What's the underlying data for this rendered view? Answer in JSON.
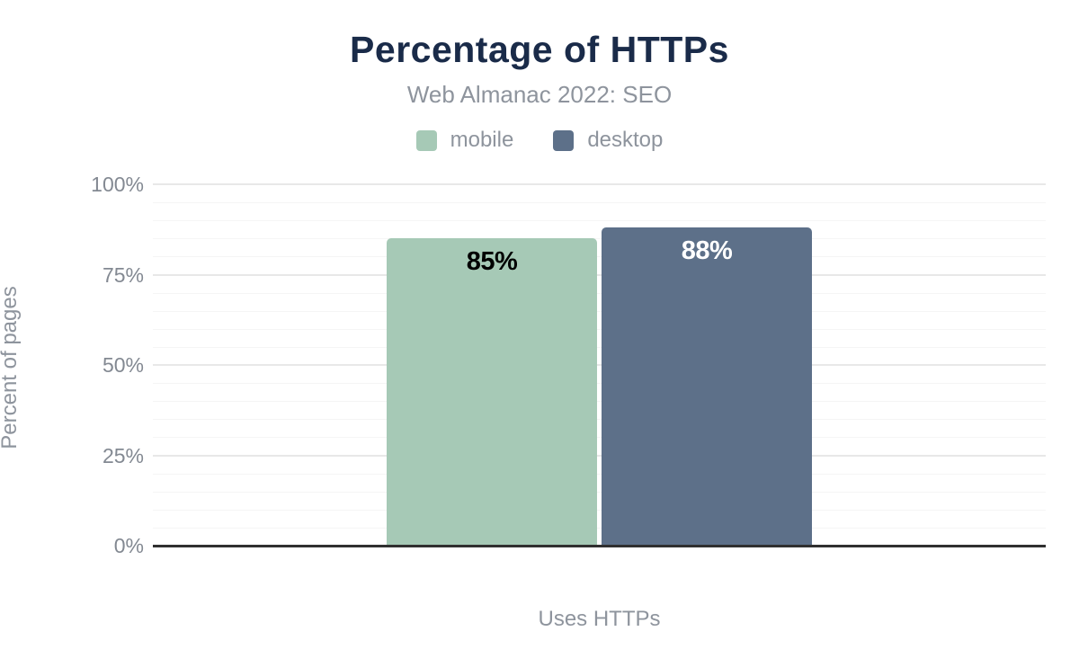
{
  "header": {
    "title": "Percentage of HTTPs",
    "subtitle": "Web Almanac 2022: SEO"
  },
  "legend": [
    {
      "label": "mobile",
      "color": "#a6c9b6"
    },
    {
      "label": "desktop",
      "color": "#5d7089"
    }
  ],
  "colors": {
    "title": "#1a2b49",
    "axis_text": "#8e949d",
    "tick_text": "#838992",
    "baseline": "#303030",
    "major_grid": "#e8e8e8",
    "minor_grid": "#f5f5f5"
  },
  "chart_data": {
    "type": "bar",
    "title": "Percentage of HTTPs",
    "subtitle": "Web Almanac 2022: SEO",
    "categories": [
      "Uses HTTPs"
    ],
    "series": [
      {
        "name": "mobile",
        "values": [
          85
        ],
        "color": "#a6c9b6",
        "label_color": "#000000"
      },
      {
        "name": "desktop",
        "values": [
          88
        ],
        "color": "#5d7089",
        "label_color": "#ffffff"
      }
    ],
    "value_suffix": "%",
    "xlabel": "Uses HTTPs",
    "ylabel": "Percent of pages",
    "ylim": [
      0,
      100
    ],
    "yticks": [
      0,
      25,
      50,
      75,
      100
    ],
    "ytick_labels": [
      "0%",
      "25%",
      "50%",
      "75%",
      "100%"
    ],
    "minor_grid_step": 5,
    "grid": true,
    "legend_position": "top",
    "data_labels": [
      "85%",
      "88%"
    ]
  }
}
